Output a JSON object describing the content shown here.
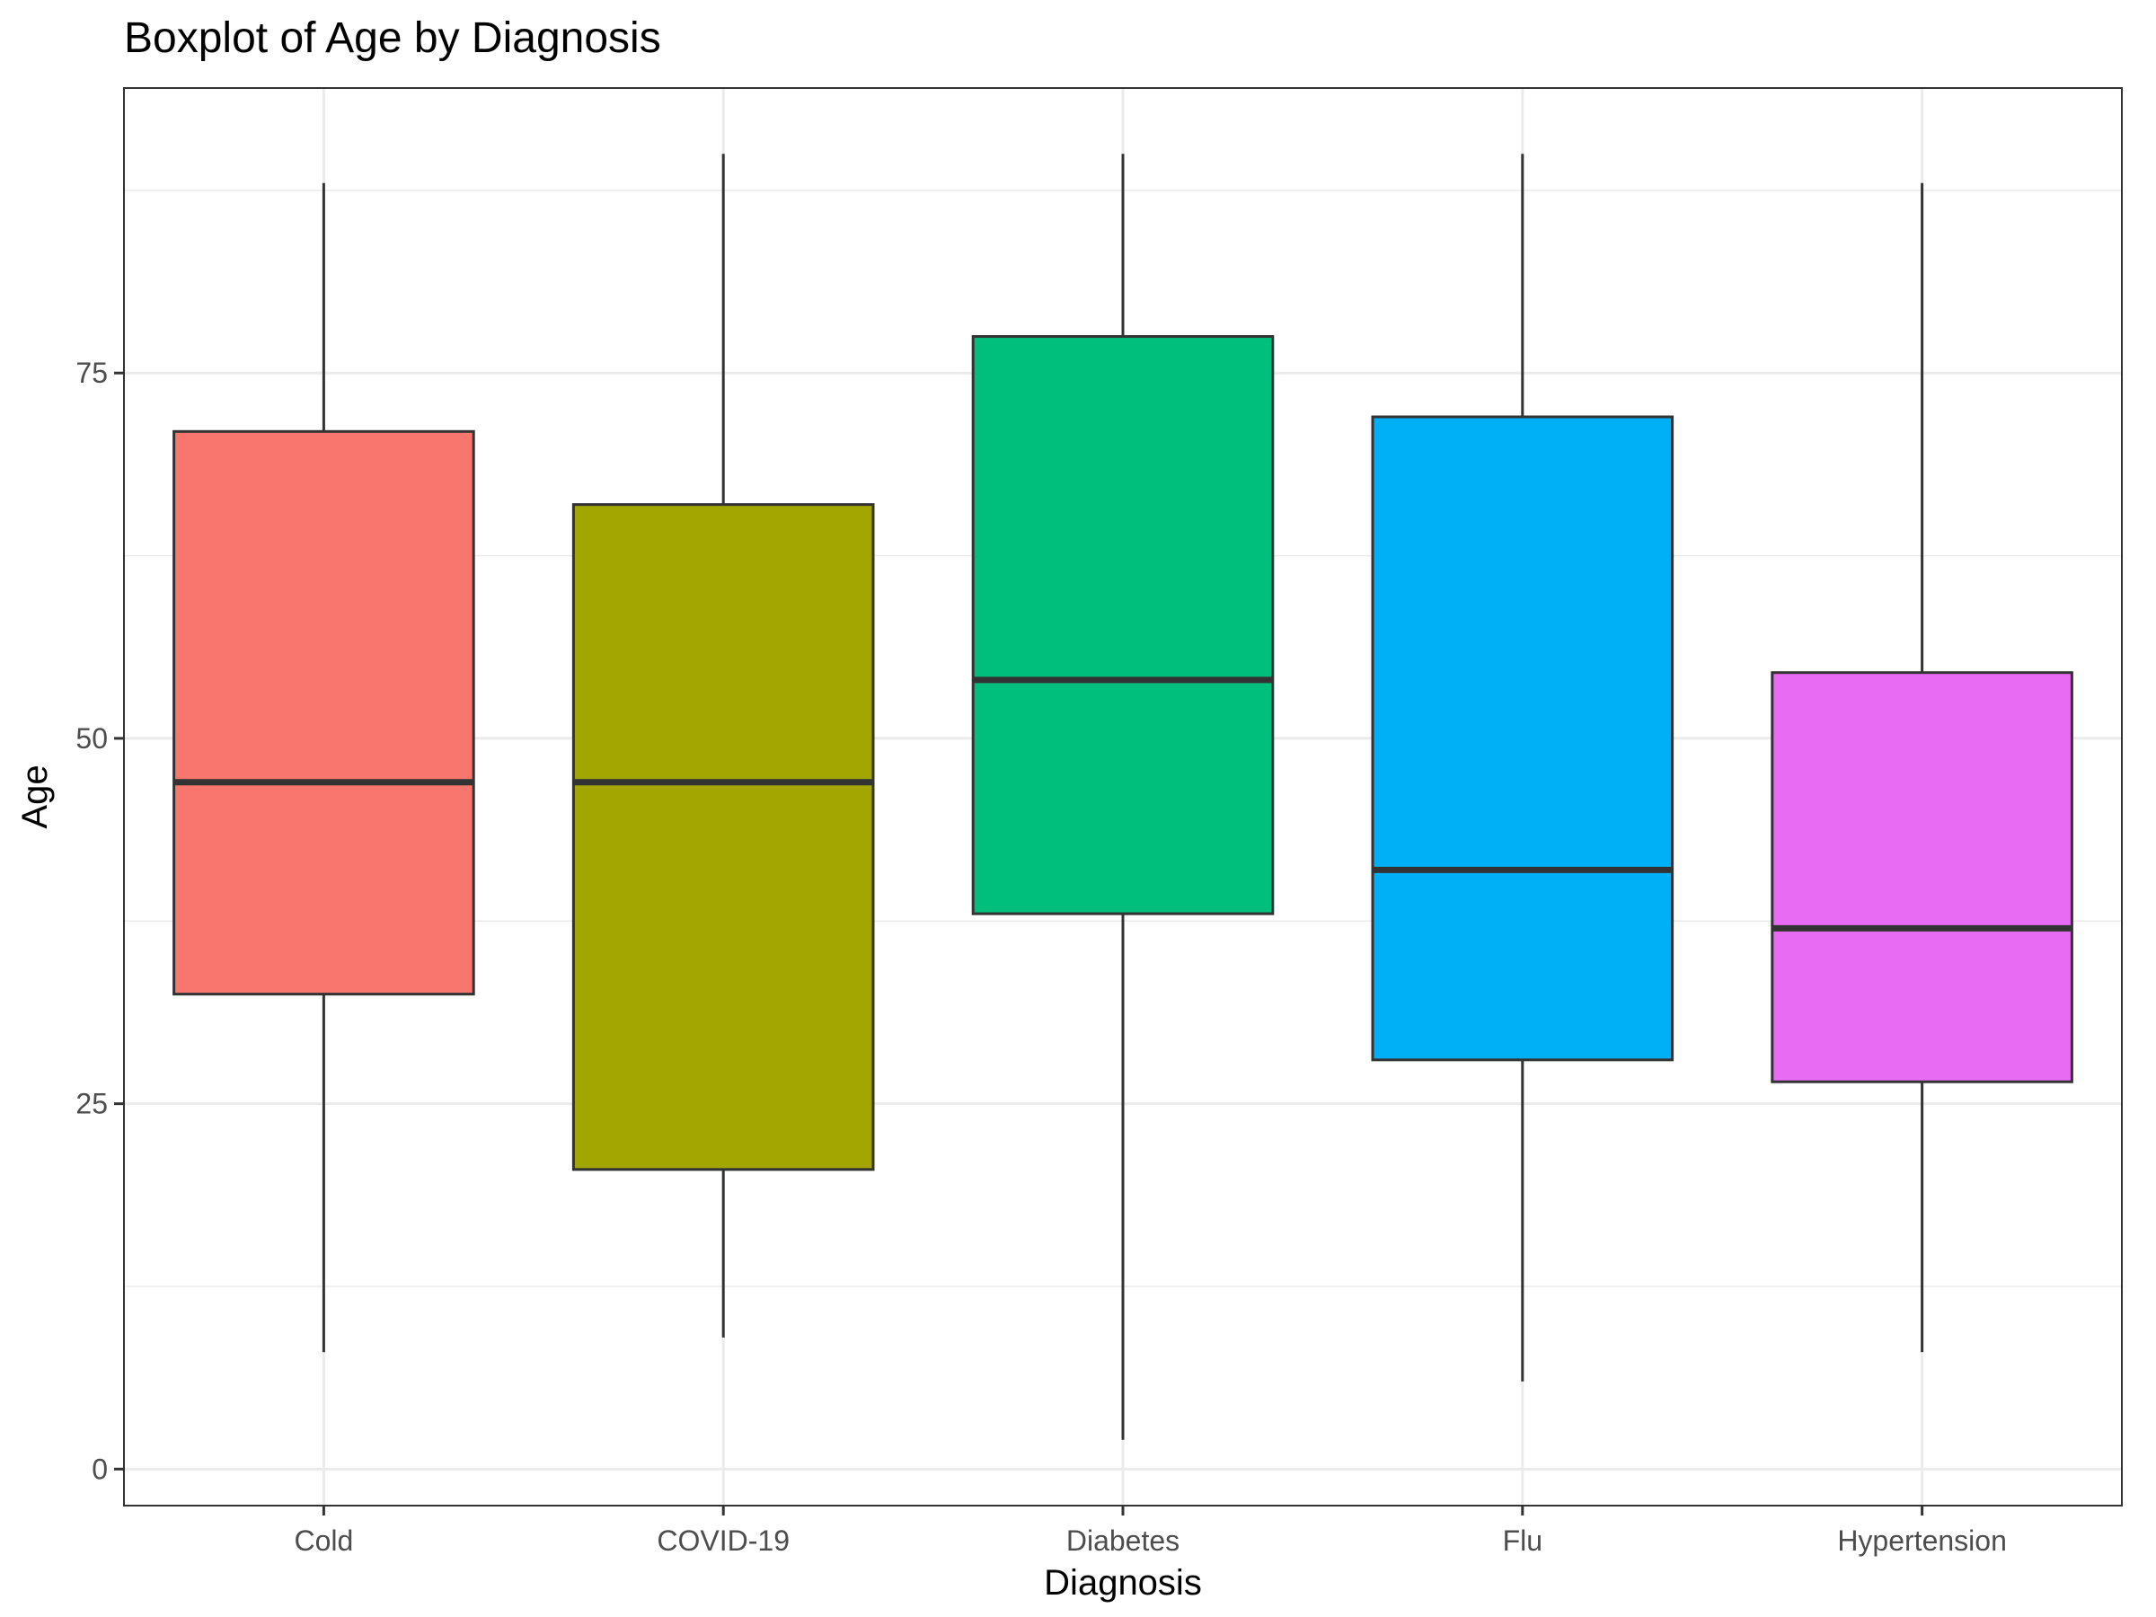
{
  "chart_data": {
    "type": "boxplot",
    "title": "Boxplot of Age by Diagnosis",
    "xlabel": "Diagnosis",
    "ylabel": "Age",
    "ylim": [
      -2.5,
      94.5
    ],
    "yticks": [
      0,
      25,
      50,
      75
    ],
    "grid": true,
    "legend": "none",
    "categories": [
      "Cold",
      "COVID-19",
      "Diabetes",
      "Flu",
      "Hypertension"
    ],
    "boxes": [
      {
        "category": "Cold",
        "min": 8,
        "q1": 32.5,
        "median": 47,
        "q3": 71,
        "max": 88,
        "color": "#F8766D"
      },
      {
        "category": "COVID-19",
        "min": 9,
        "q1": 20.5,
        "median": 47,
        "q3": 66,
        "max": 90,
        "color": "#A3A500"
      },
      {
        "category": "Diabetes",
        "min": 2,
        "q1": 38,
        "median": 54,
        "q3": 77.5,
        "max": 90,
        "color": "#00BF7D"
      },
      {
        "category": "Flu",
        "min": 6,
        "q1": 28,
        "median": 41,
        "q3": 72,
        "max": 90,
        "color": "#00B0F6"
      },
      {
        "category": "Hypertension",
        "min": 8,
        "q1": 26.5,
        "median": 37,
        "q3": 54.5,
        "max": 88,
        "color": "#E76BF3"
      }
    ]
  }
}
